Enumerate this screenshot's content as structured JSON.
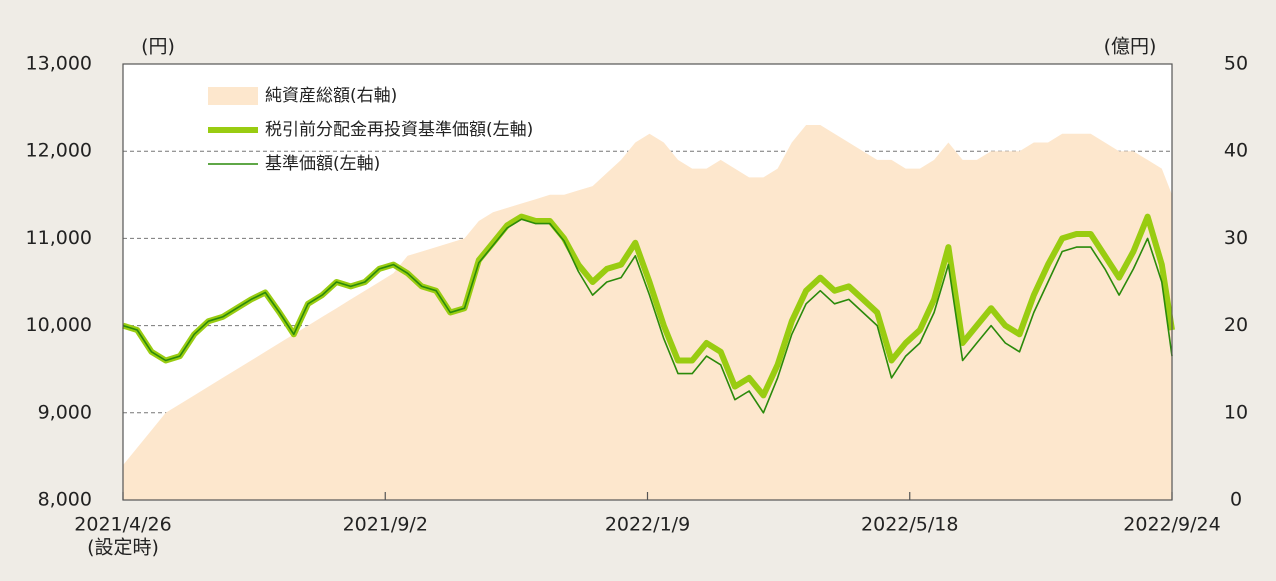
{
  "chart_data": {
    "type": "line",
    "y_label": "(円)",
    "y2_label": "(億円)",
    "x_annotation": "(設定時)",
    "x": [
      "2021/4/26",
      "2021/5/3",
      "2021/5/10",
      "2021/5/17",
      "2021/5/24",
      "2021/5/31",
      "2021/6/7",
      "2021/6/14",
      "2021/6/21",
      "2021/6/28",
      "2021/7/5",
      "2021/7/12",
      "2021/7/19",
      "2021/7/26",
      "2021/8/2",
      "2021/8/9",
      "2021/8/16",
      "2021/8/23",
      "2021/8/30",
      "2021/9/6",
      "2021/9/13",
      "2021/9/20",
      "2021/9/27",
      "2021/10/4",
      "2021/10/11",
      "2021/10/18",
      "2021/10/25",
      "2021/11/1",
      "2021/11/8",
      "2021/11/15",
      "2021/11/22",
      "2021/11/29",
      "2021/12/6",
      "2021/12/13",
      "2021/12/20",
      "2021/12/27",
      "2022/1/3",
      "2022/1/10",
      "2022/1/17",
      "2022/1/24",
      "2022/1/31",
      "2022/2/7",
      "2022/2/14",
      "2022/2/21",
      "2022/2/28",
      "2022/3/7",
      "2022/3/14",
      "2022/3/21",
      "2022/3/28",
      "2022/4/4",
      "2022/4/11",
      "2022/4/18",
      "2022/4/25",
      "2022/5/2",
      "2022/5/9",
      "2022/5/16",
      "2022/5/23",
      "2022/5/30",
      "2022/6/6",
      "2022/6/13",
      "2022/6/20",
      "2022/6/27",
      "2022/7/4",
      "2022/7/11",
      "2022/7/18",
      "2022/7/25",
      "2022/8/1",
      "2022/8/8",
      "2022/8/15",
      "2022/8/22",
      "2022/8/29",
      "2022/9/5",
      "2022/9/12",
      "2022/9/19",
      "2022/9/24"
    ],
    "series": [
      {
        "name": "純資産総額(右軸)",
        "kind": "area",
        "axis": "y2",
        "color": "#fde7cd",
        "values": [
          4,
          6,
          8,
          10,
          11,
          12,
          13,
          14,
          15,
          16,
          17,
          18,
          19,
          20,
          21,
          22,
          23,
          24,
          25,
          26,
          28,
          28.5,
          29,
          29.5,
          30,
          32,
          33,
          33.5,
          34,
          34.5,
          35,
          35,
          35.5,
          36,
          37.5,
          39,
          41,
          42,
          41,
          39,
          38,
          38,
          39,
          38,
          37,
          37,
          38,
          41,
          43,
          43,
          42,
          41,
          40,
          39,
          39,
          38,
          38,
          39,
          41,
          39,
          39,
          40,
          40,
          40,
          41,
          41,
          42,
          42,
          42,
          41,
          40,
          40,
          39,
          38,
          35
        ]
      },
      {
        "name": "税引前分配金再投資基準価額(左軸)",
        "kind": "line",
        "color": "#99cc11",
        "width": 6,
        "values": [
          10000,
          9950,
          9700,
          9600,
          9650,
          9900,
          10050,
          10100,
          10200,
          10300,
          10380,
          10150,
          9900,
          10250,
          10350,
          10500,
          10450,
          10500,
          10650,
          10700,
          10600,
          10450,
          10400,
          10150,
          10200,
          10750,
          10950,
          11150,
          11250,
          11200,
          11200,
          11000,
          10700,
          10500,
          10650,
          10700,
          10950,
          10500,
          10000,
          9600,
          9600,
          9800,
          9700,
          9300,
          9400,
          9200,
          9550,
          10050,
          10400,
          10550,
          10400,
          10450,
          10300,
          10150,
          9600,
          9800,
          9950,
          10300,
          10900,
          9800,
          10000,
          10200,
          10000,
          9900,
          10350,
          10700,
          11000,
          11050,
          11050,
          10800,
          10550,
          10850,
          11250,
          10700,
          9950
        ]
      },
      {
        "name": "基準価額(左軸)",
        "kind": "line",
        "color": "#2a8a0a",
        "width": 1.6,
        "values": [
          10000,
          9950,
          9700,
          9600,
          9650,
          9900,
          10050,
          10100,
          10200,
          10300,
          10380,
          10150,
          9900,
          10250,
          10350,
          10500,
          10450,
          10500,
          10650,
          10700,
          10600,
          10450,
          10400,
          10150,
          10200,
          10720,
          10920,
          11120,
          11220,
          11170,
          11170,
          10970,
          10620,
          10350,
          10500,
          10550,
          10800,
          10350,
          9850,
          9450,
          9450,
          9650,
          9550,
          9150,
          9250,
          9000,
          9400,
          9900,
          10250,
          10400,
          10250,
          10300,
          10150,
          10000,
          9400,
          9650,
          9800,
          10150,
          10700,
          9600,
          9800,
          10000,
          9800,
          9700,
          10150,
          10500,
          10850,
          10900,
          10900,
          10650,
          10350,
          10650,
          11000,
          10500,
          9650
        ]
      }
    ],
    "xlim": [
      "2021/4/26",
      "2022/9/24"
    ],
    "xticks": [
      "2021/4/26",
      "2021/9/2",
      "2022/1/9",
      "2022/5/18",
      "2022/9/24"
    ],
    "ylim": [
      8000,
      13000
    ],
    "yticks": [
      {
        "value": 8000,
        "label": "8,000"
      },
      {
        "value": 9000,
        "label": "9,000"
      },
      {
        "value": 10000,
        "label": "10,000"
      },
      {
        "value": 11000,
        "label": "11,000"
      },
      {
        "value": 12000,
        "label": "12,000"
      },
      {
        "value": 13000,
        "label": "13,000"
      }
    ],
    "y2lim": [
      0,
      50
    ],
    "y2ticks": [
      0,
      10,
      20,
      30,
      40,
      50
    ],
    "grid": true,
    "legend": "upper left"
  }
}
